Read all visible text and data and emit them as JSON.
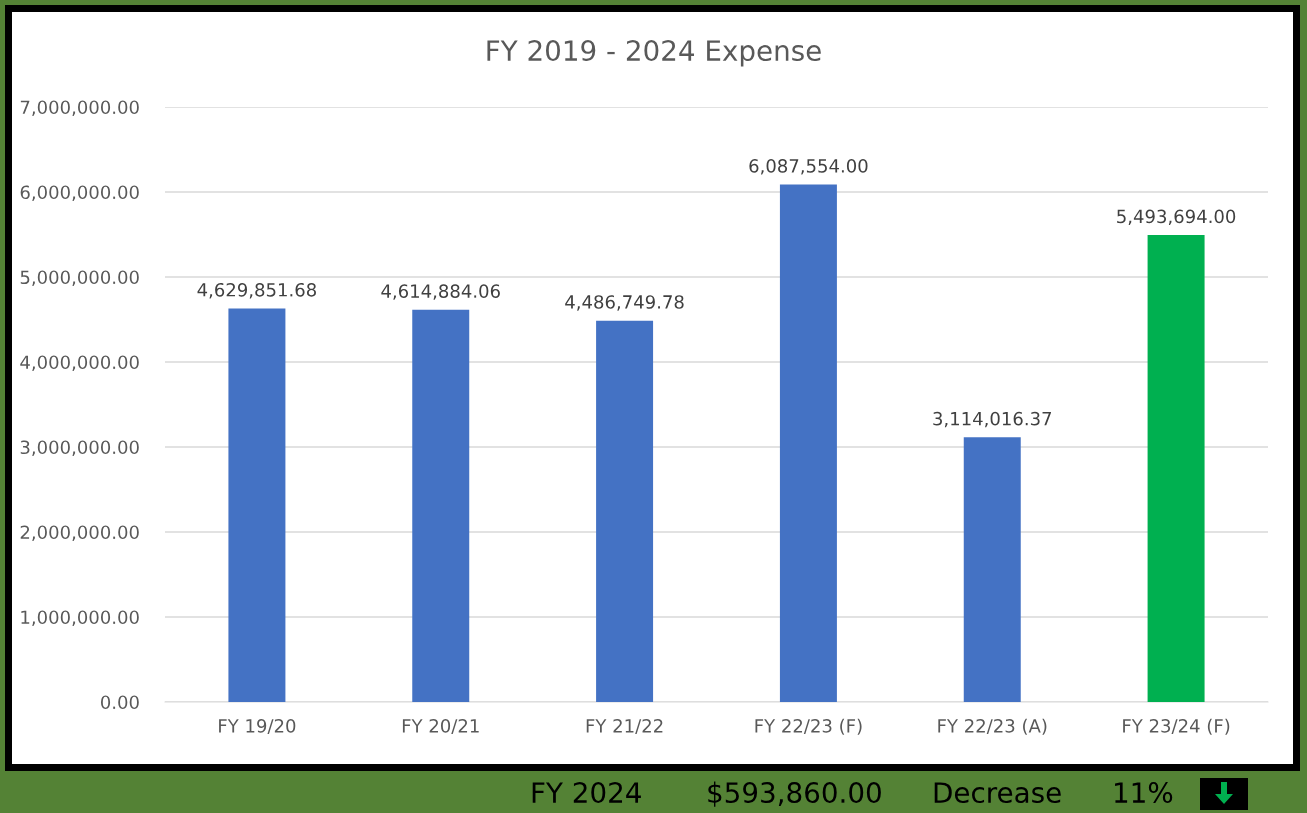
{
  "chart_data": {
    "type": "bar",
    "title": "FY 2019 - 2024 Expense",
    "categories": [
      "FY 19/20",
      "FY 20/21",
      "FY 21/22",
      "FY 22/23 (F)",
      "FY 22/23 (A)",
      "FY 23/24 (F)"
    ],
    "values": [
      4629851.68,
      4614884.06,
      4486749.78,
      6087554.0,
      3114016.37,
      5493694.0
    ],
    "colors": [
      "#4472c4",
      "#4472c4",
      "#4472c4",
      "#4472c4",
      "#4472c4",
      "#00b050"
    ],
    "value_labels": [
      "4,629,851.68",
      "4,614,884.06",
      "4,486,749.78",
      "6,087,554.00",
      "3,114,016.37",
      "5,493,694.00"
    ],
    "ylim": [
      0,
      7000000
    ],
    "yticks": [
      {
        "value": 0,
        "label": "0.00"
      },
      {
        "value": 1000000,
        "label": "1,000,000.00"
      },
      {
        "value": 2000000,
        "label": "2,000,000.00"
      },
      {
        "value": 3000000,
        "label": "3,000,000.00"
      },
      {
        "value": 4000000,
        "label": "4,000,000.00"
      },
      {
        "value": 5000000,
        "label": "5,000,000.00"
      },
      {
        "value": 6000000,
        "label": "6,000,000.00"
      },
      {
        "value": 7000000,
        "label": "7,000,000.00"
      }
    ],
    "grid": "y",
    "annotations": [
      "FY 2024",
      "$593,860.00",
      "Decrease",
      "11%"
    ]
  }
}
